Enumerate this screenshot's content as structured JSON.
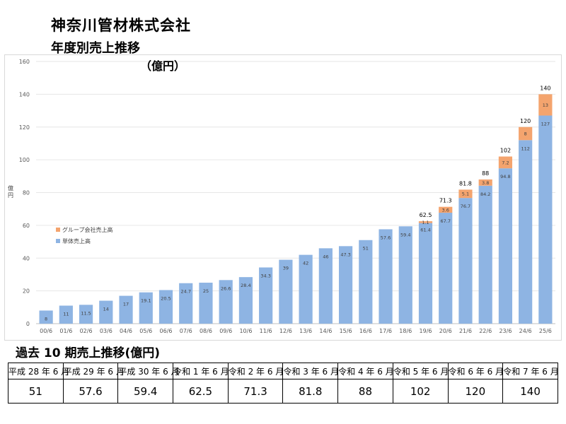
{
  "company_name": "神奈川管材株式会社",
  "chart_heading": "年度別売上推移",
  "unit_label": "（億円）",
  "table_title": "過去 10 期売上推移(億円)",
  "colors": {
    "standalone": "#8eb4e3",
    "group": "#f4a46e",
    "grid": "#e6e6e6",
    "axis": "#bfbfbf"
  },
  "chart_data": {
    "type": "bar",
    "stacked": true,
    "title": "年度別売上推移",
    "ylabel": "億円",
    "ylim": [
      0,
      160
    ],
    "yticks": [
      0,
      20,
      40,
      60,
      80,
      100,
      120,
      140,
      160
    ],
    "categories": [
      "00/6",
      "01/6",
      "02/6",
      "03/6",
      "04/6",
      "05/6",
      "06/6",
      "07/6",
      "08/6",
      "09/6",
      "10/6",
      "11/6",
      "12/6",
      "13/6",
      "14/6",
      "15/6",
      "16/6",
      "17/6",
      "18/6",
      "19/6",
      "20/6",
      "21/6",
      "22/6",
      "23/6",
      "24/6",
      "25/6"
    ],
    "series": [
      {
        "name": "単体売上高",
        "values": [
          8,
          11,
          11.5,
          14,
          17,
          19.1,
          20.5,
          24.7,
          25,
          26.6,
          28.4,
          34.3,
          39,
          42,
          46,
          47.3,
          51,
          57.6,
          59.4,
          61.4,
          67.7,
          76.7,
          84.2,
          94.8,
          112,
          127
        ]
      },
      {
        "name": "グループ会社売上高",
        "values": [
          null,
          null,
          null,
          null,
          null,
          null,
          null,
          null,
          null,
          null,
          null,
          null,
          null,
          null,
          null,
          null,
          null,
          null,
          null,
          1.1,
          3.6,
          5.1,
          3.8,
          7.2,
          8,
          13
        ]
      }
    ],
    "totals": [
      null,
      null,
      null,
      null,
      null,
      null,
      null,
      null,
      null,
      null,
      null,
      null,
      null,
      null,
      null,
      null,
      null,
      null,
      null,
      62.5,
      71.3,
      81.8,
      88,
      102,
      120,
      140
    ],
    "legend_position": "left-middle"
  },
  "history_table": {
    "headers": [
      "平成 28 年 6 月",
      "平成 29 年 6 月",
      "平成 30 年 6 月",
      "令和 1 年 6 月",
      "令和 2 年 6 月",
      "令和 3 年 6 月",
      "令和 4 年 6 月",
      "令和 5 年 6 月",
      "令和 6 年 6 月",
      "令和 7 年 6 月"
    ],
    "values": [
      "51",
      "57.6",
      "59.4",
      "62.5",
      "71.3",
      "81.8",
      "88",
      "102",
      "120",
      "140"
    ]
  }
}
